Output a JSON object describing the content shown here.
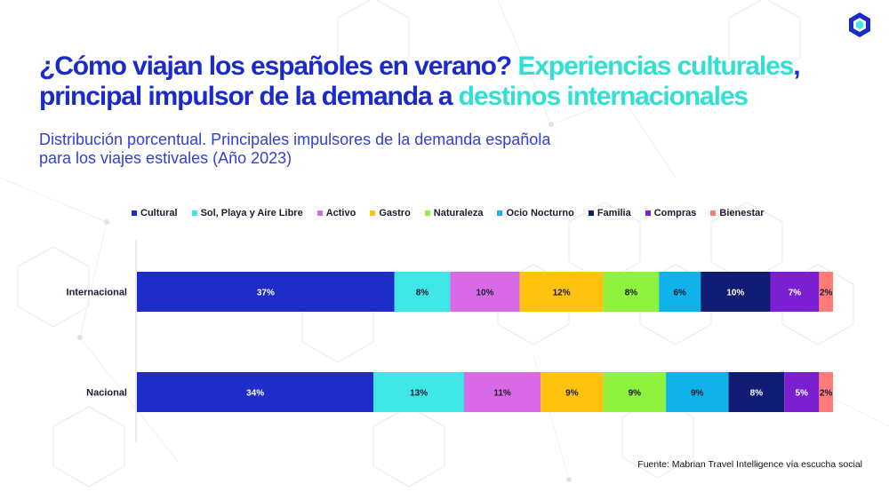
{
  "header": {
    "title_part1": "¿Cómo viajan los españoles en verano? ",
    "title_part2": "Experiencias culturales",
    "title_part3": ", principal impulsor de la demanda a ",
    "title_part4": "destinos internacionales",
    "subtitle_line1": "Distribución porcentual. Principales impulsores de la demanda española",
    "subtitle_line2": "para los viajes estivales (Año 2023)"
  },
  "colors": {
    "title_primary": "#1a2acb",
    "title_highlight": "#2fe0d3",
    "subtitle": "#3340d6"
  },
  "logo": {
    "icon": "hexagon-logo-icon"
  },
  "chart_data": {
    "type": "bar",
    "orientation": "horizontal",
    "stacked": true,
    "categories": [
      "Internacional",
      "Nacional"
    ],
    "series": [
      {
        "name": "Cultural",
        "color": "#1e2dc8",
        "values": [
          37,
          34
        ]
      },
      {
        "name": "Sol, Playa y Aire Libre",
        "color": "#3fe6e6",
        "values": [
          8,
          13
        ]
      },
      {
        "name": "Activo",
        "color": "#d96ae6",
        "values": [
          10,
          11
        ]
      },
      {
        "name": "Gastro",
        "color": "#ffc20e",
        "values": [
          12,
          9
        ]
      },
      {
        "name": "Naturaleza",
        "color": "#8ff23c",
        "values": [
          8,
          9
        ]
      },
      {
        "name": "Ocio Nocturno",
        "color": "#10b2ea",
        "values": [
          6,
          9
        ]
      },
      {
        "name": "Familia",
        "color": "#101b73",
        "values": [
          10,
          8
        ]
      },
      {
        "name": "Compras",
        "color": "#7b20d0",
        "values": [
          7,
          5
        ]
      },
      {
        "name": "Bienestar",
        "color": "#ff7a78",
        "values": [
          2,
          2
        ]
      }
    ],
    "data_labels": [
      [
        "37%",
        "8%",
        "10%",
        "12%",
        "8%",
        "6%",
        "10%",
        "7%",
        "2%"
      ],
      [
        "34%",
        "13%",
        "11%",
        "9%",
        "9%",
        "9%",
        "8%",
        "5%",
        "2%"
      ]
    ],
    "legend_position": "top",
    "grid": false
  },
  "footer": {
    "source": "Fuente: Mabrian Travel Intelligence vía escucha social"
  }
}
